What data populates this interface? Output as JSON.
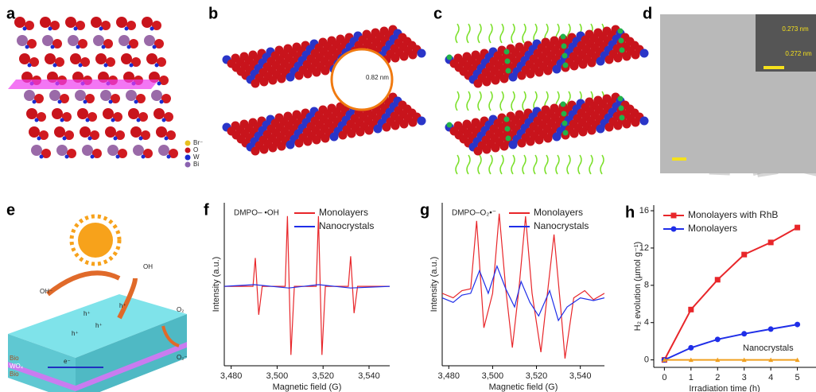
{
  "panels": {
    "a": {
      "label": "a",
      "legend": [
        "Br⁻",
        "O",
        "W",
        "Bi"
      ]
    },
    "b": {
      "label": "b",
      "spacing": "0.82 nm"
    },
    "c": {
      "label": "c"
    },
    "d": {
      "label": "d",
      "lattice": [
        "0.273 nm",
        "0.272 nm"
      ]
    },
    "e": {
      "label": "e",
      "labels": [
        "OH⁻",
        "OH",
        "O₂",
        "O₂⁻",
        "h⁺",
        "h⁺",
        "h⁺",
        "h⁺",
        "e⁻",
        "Bio",
        "WO₄",
        "Bio"
      ]
    }
  },
  "chart_data": [
    {
      "type": "line",
      "panel_label": "f",
      "annotation": "DMPO– •OH",
      "xlabel": "Magnetic field (G)",
      "ylabel": "Intensity (a.u.)",
      "xlim": [
        3477,
        3549
      ],
      "ylim": [
        -95,
        100
      ],
      "xticks": [
        {
          "value": 3480,
          "label": "3,480"
        },
        {
          "value": 3500,
          "label": "3,500"
        },
        {
          "value": 3520,
          "label": "3,520"
        },
        {
          "value": 3540,
          "label": "3,540"
        }
      ],
      "legend": "upper right",
      "series": [
        {
          "name": "Monolayers",
          "color": "#e8262a",
          "x": [
            3477,
            3489.5,
            3490.5,
            3492,
            3493.5,
            3503.5,
            3504.5,
            3506,
            3507.5,
            3517,
            3518,
            3519.5,
            3521,
            3531,
            3532,
            3533.5,
            3535,
            3549
          ],
          "values": [
            0,
            0,
            34,
            -34,
            0,
            0,
            84,
            -82,
            0,
            0,
            84,
            -82,
            0,
            0,
            36,
            -32,
            0,
            0
          ]
        },
        {
          "name": "Nanocrystals",
          "color": "#1f2ee8",
          "x": [
            3477,
            3490,
            3505,
            3518,
            3532,
            3549
          ],
          "values": [
            0,
            2,
            -2,
            2,
            -2,
            0
          ]
        }
      ]
    },
    {
      "type": "line",
      "panel_label": "g",
      "annotation": "DMPO–O₂•⁻",
      "xlabel": "Magnetic field (G)",
      "ylabel": "Intensity (a.u.)",
      "xlim": [
        3477,
        3551
      ],
      "ylim": [
        -75,
        105
      ],
      "xticks": [
        {
          "value": 3480,
          "label": "3,480"
        },
        {
          "value": 3500,
          "label": "3,500"
        },
        {
          "value": 3520,
          "label": "3,520"
        },
        {
          "value": 3540,
          "label": "3,540"
        }
      ],
      "legend": "upper right",
      "series": [
        {
          "name": "Monolayers",
          "color": "#e8262a",
          "x": [
            3477,
            3482,
            3486,
            3490,
            3492.7,
            3496,
            3500,
            3503,
            3506,
            3509,
            3512,
            3515,
            3518,
            3522,
            3525,
            3528,
            3531,
            3533,
            3537,
            3542,
            3546,
            3551
          ],
          "values": [
            5,
            0,
            8,
            10,
            85,
            -33,
            5,
            93,
            10,
            -55,
            10,
            90,
            5,
            -60,
            5,
            70,
            -10,
            -67,
            0,
            8,
            -2,
            5
          ]
        },
        {
          "name": "Nanocrystals",
          "color": "#1f2ee8",
          "x": [
            3477,
            3482,
            3486,
            3490,
            3494,
            3498,
            3502,
            3506,
            3510,
            3513,
            3517,
            3521,
            3526,
            3530,
            3534,
            3540,
            3546,
            3551
          ],
          "values": [
            0,
            -5,
            3,
            5,
            30,
            5,
            35,
            10,
            -10,
            18,
            -5,
            -20,
            8,
            -25,
            -10,
            0,
            -3,
            0
          ]
        }
      ]
    },
    {
      "type": "line",
      "panel_label": "h",
      "xlabel": "Irradiation time (h)",
      "ylabel": "H₂ evolution (µmol g⁻¹)",
      "annotation": "Nanocrystals",
      "xlim": [
        -0.4,
        5.7
      ],
      "ylim": [
        -0.8,
        16.6
      ],
      "xticks": [
        0,
        1,
        2,
        3,
        4,
        5
      ],
      "yticks": [
        0,
        4,
        8,
        12,
        16
      ],
      "legend": "upper left",
      "x": [
        0,
        1,
        2,
        3,
        4,
        5
      ],
      "series": [
        {
          "name": "Monolayers with RhB",
          "color": "#e8262a",
          "marker": "square",
          "values": [
            0,
            5.4,
            8.6,
            11.3,
            12.6,
            14.2
          ]
        },
        {
          "name": "Monolayers",
          "color": "#1f2ee8",
          "marker": "circle",
          "values": [
            0,
            1.3,
            2.2,
            2.8,
            3.3,
            3.8
          ]
        },
        {
          "name": "Nanocrystals",
          "color": "#f0a020",
          "marker": "triangle",
          "values": [
            0,
            0,
            0,
            0,
            0,
            0
          ],
          "legend": false
        }
      ]
    }
  ]
}
